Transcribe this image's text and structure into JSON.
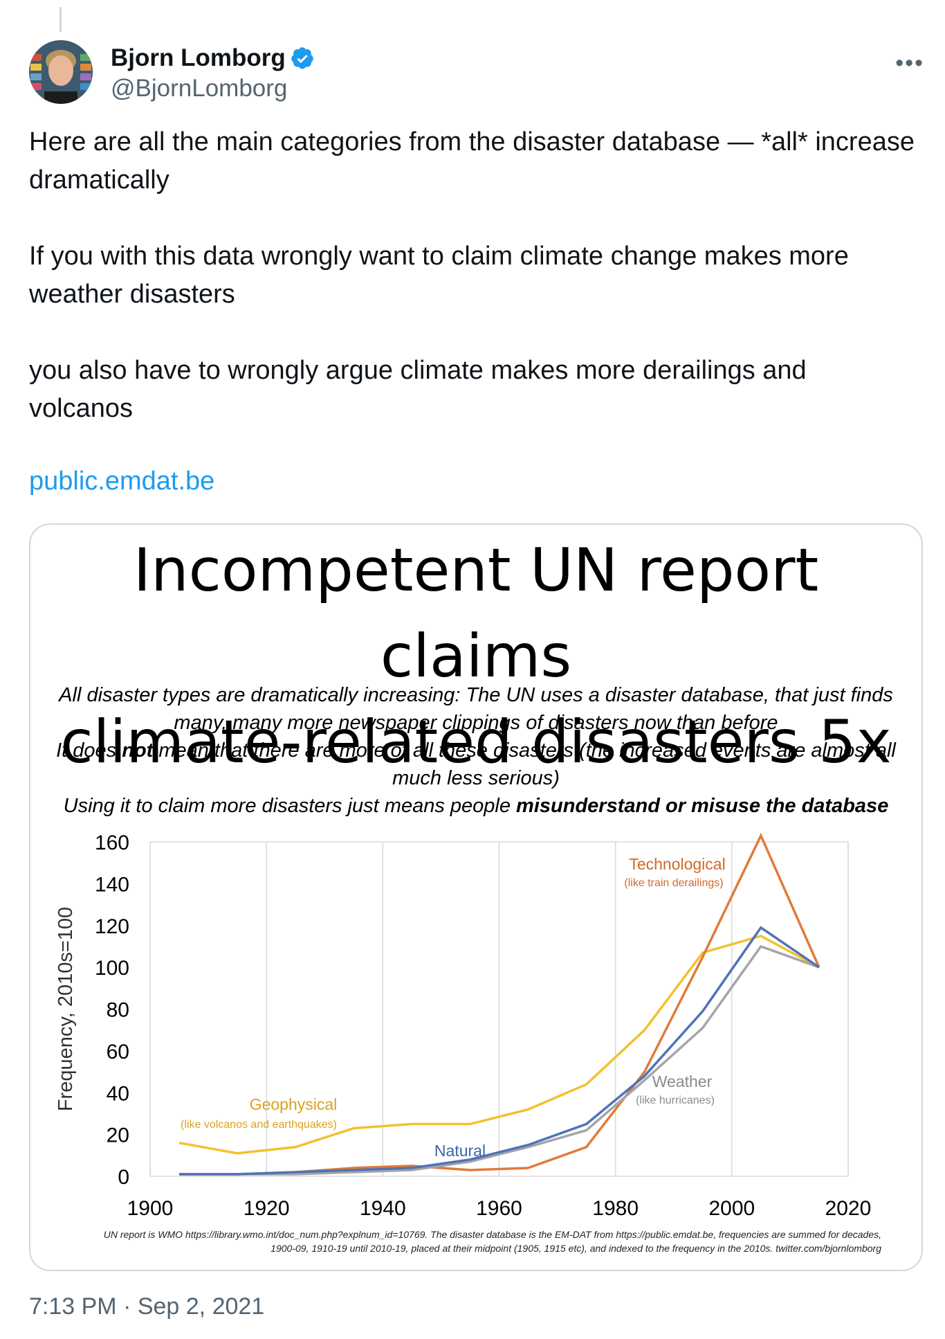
{
  "author": {
    "name": "Bjorn Lomborg",
    "handle": "@BjornLomborg"
  },
  "tweet": {
    "text": "Here are all the main categories from the disaster database — *all* increase dramatically\n\nIf you with this data wrongly want to claim climate change makes more weather disasters\n\nyou also have to wrongly argue climate makes more derailings and volcanos",
    "link": "public.emdat.be",
    "timestamp": "7:13 PM · Sep 2, 2021"
  },
  "card": {
    "title_line1": "Incompetent UN report claims",
    "title_line2": "climate-related disasters 5x",
    "sub1": "All disaster types are dramatically increasing: The UN uses a disaster database, that just finds",
    "sub2": "many, many more newspaper clippings of disasters now than before",
    "sub3a": "It does ",
    "sub3b": "not",
    "sub3c": " mean that there are more of all these disasters (the increased events are almost all",
    "sub4": "much less serious)",
    "sub5a": "Using it to claim more disasters just means people ",
    "sub5b": "misunderstand or misuse the database",
    "footnote1": "UN report is WMO https://library.wmo.int/doc_num.php?explnum_id=10769. The disaster database is the EM-DAT from https://public.emdat.be, frequencies are summed for decades,",
    "footnote2": "1900-09, 1910-19 until 2010-19, placed at their midpoint (1905, 1915 etc), and indexed to the frequency in the 2010s. twitter.com/bjornlomborg"
  },
  "chart_data": {
    "type": "line",
    "ylabel": "Frequency, 2010s=100",
    "xlim": [
      1900,
      2020
    ],
    "ylim": [
      0,
      160
    ],
    "xticks": [
      1900,
      1920,
      1940,
      1960,
      1980,
      2000,
      2020
    ],
    "yticks": [
      0,
      20,
      40,
      60,
      80,
      100,
      120,
      140,
      160
    ],
    "grid": "vertical",
    "x": [
      1905,
      1915,
      1925,
      1935,
      1945,
      1955,
      1965,
      1975,
      1985,
      1995,
      2005,
      2015
    ],
    "series": [
      {
        "name": "Geophysical",
        "note": "(like volcanos and earthquakes)",
        "color": "#f2c12e",
        "values": [
          16,
          11,
          14,
          23,
          25,
          25,
          32,
          44,
          70,
          107,
          115,
          100
        ]
      },
      {
        "name": "Technological",
        "note": "(like train derailings)",
        "color": "#e07b39",
        "values": [
          1,
          1,
          2,
          4,
          5,
          3,
          4,
          14,
          50,
          105,
          163,
          100
        ]
      },
      {
        "name": "Natural",
        "note": "",
        "color": "#4f73b8",
        "values": [
          1,
          1,
          2,
          3,
          4,
          8,
          15,
          25,
          48,
          79,
          119,
          100
        ]
      },
      {
        "name": "Weather",
        "note": "(like hurricanes)",
        "color": "#a5a5a5",
        "values": [
          1,
          1,
          1,
          2,
          3,
          7,
          14,
          22,
          46,
          71,
          110,
          100
        ]
      }
    ]
  }
}
